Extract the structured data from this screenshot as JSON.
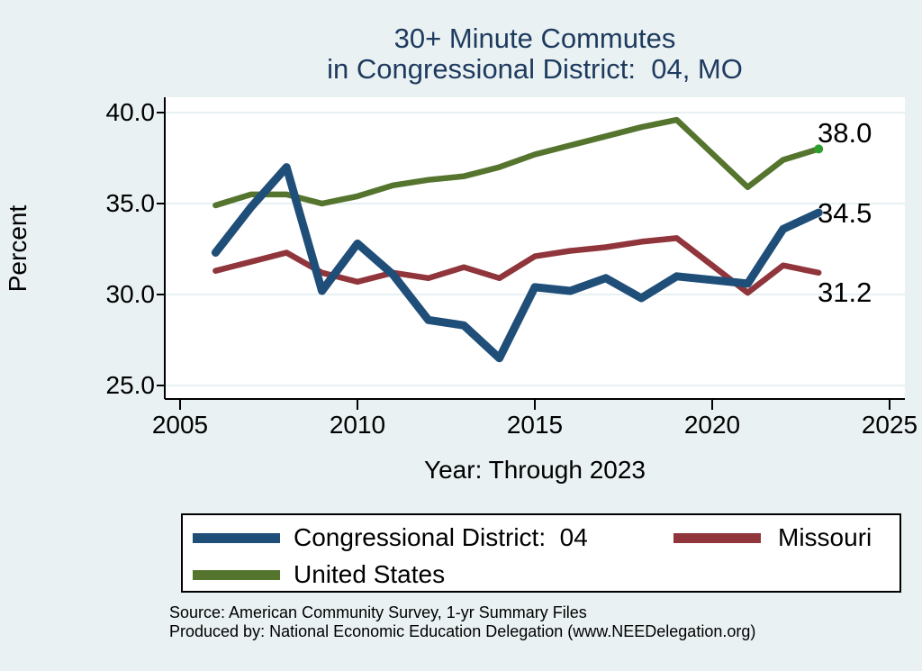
{
  "title": {
    "line1": "30+ Minute Commutes",
    "line2": "in Congressional District:  04, MO"
  },
  "chart_data": {
    "type": "line",
    "x": [
      2006,
      2007,
      2008,
      2009,
      2010,
      2011,
      2012,
      2013,
      2014,
      2015,
      2016,
      2017,
      2018,
      2019,
      2021,
      2022,
      2023
    ],
    "series": [
      {
        "name": "Congressional District:  04",
        "color": "#1f4e79",
        "line_width": 9,
        "end_label": "34.5",
        "values": [
          32.3,
          34.8,
          37.0,
          30.2,
          32.8,
          31.1,
          28.6,
          28.3,
          26.5,
          30.4,
          30.2,
          30.9,
          29.8,
          31.0,
          30.6,
          33.6,
          34.5
        ]
      },
      {
        "name": "Missouri",
        "color": "#90353b",
        "line_width": 6.5,
        "end_label": "31.2",
        "values": [
          31.3,
          31.8,
          32.3,
          31.2,
          30.7,
          31.2,
          30.9,
          31.5,
          30.9,
          32.1,
          32.4,
          32.6,
          32.9,
          33.1,
          30.1,
          31.6,
          31.2
        ]
      },
      {
        "name": "United States",
        "color": "#55752f",
        "line_width": 6.5,
        "end_label": "38.0",
        "end_marker": true,
        "end_marker_color": "#2e9e2e",
        "values": [
          34.9,
          35.5,
          35.5,
          35.0,
          35.4,
          36.0,
          36.3,
          36.5,
          37.0,
          37.7,
          38.2,
          38.7,
          39.2,
          39.6,
          35.9,
          37.4,
          38.0
        ]
      }
    ],
    "xlabel": "Year: Through 2023",
    "ylabel": "Percent",
    "xticks": [
      "2005",
      "2010",
      "2015",
      "2020",
      "2025"
    ],
    "yticks": [
      "40.0",
      "35.0",
      "30.0",
      "25.0"
    ],
    "xlim": [
      2004.6,
      2025.4
    ],
    "ylim": [
      24.3,
      40.8
    ],
    "grid": true,
    "gridline_color": "#dfebee",
    "plot_background": "#ffffff",
    "page_background": "#e9f1f2",
    "legend_position": "bottom"
  },
  "legend": {
    "rows": [
      [
        "Congressional District:  04",
        "Missouri"
      ],
      [
        "United States"
      ]
    ]
  },
  "source": {
    "line1": "Source: American Community Survey, 1-yr Summary Files",
    "line2": "Produced by: National Economic Education Delegation (www.NEEDelegation.org)"
  }
}
